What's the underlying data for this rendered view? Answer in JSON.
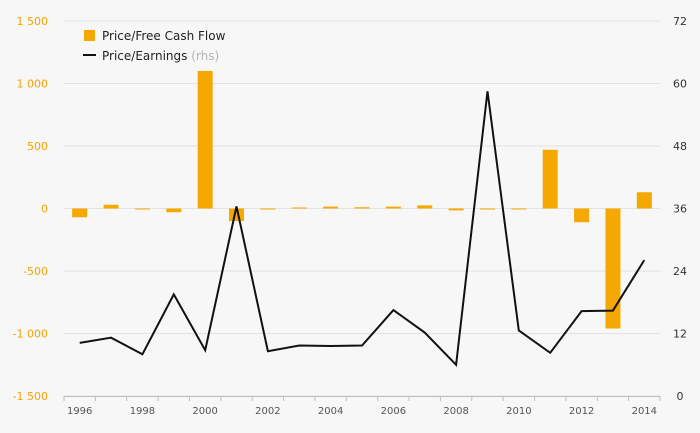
{
  "chart_data": {
    "type": "bar",
    "x": [
      1996,
      1997,
      1998,
      1999,
      2000,
      2001,
      2002,
      2003,
      2004,
      2005,
      2006,
      2007,
      2008,
      2009,
      2010,
      2011,
      2012,
      2013,
      2014
    ],
    "x_tick_labels": [
      "1996",
      "1998",
      "2000",
      "2002",
      "2004",
      "2006",
      "2008",
      "2010",
      "2012",
      "2014"
    ],
    "series": [
      {
        "name": "Price/Free Cash Flow",
        "type": "bar",
        "axis": "left",
        "color": "#f5a800",
        "values": [
          -70,
          30,
          -5,
          -30,
          1100,
          -100,
          -5,
          8,
          15,
          10,
          15,
          25,
          -15,
          -5,
          -5,
          470,
          -110,
          -960,
          130
        ]
      },
      {
        "name": "Price/Earnings",
        "name_suffix": "(rhs)",
        "type": "line",
        "axis": "right",
        "color": "#111111",
        "values": [
          10.2,
          11.2,
          8.0,
          19.5,
          8.8,
          36.4,
          8.6,
          9.7,
          9.6,
          9.7,
          16.5,
          12.2,
          6.0,
          58.5,
          12.6,
          8.3,
          16.3,
          16.4,
          26.1
        ]
      }
    ],
    "y_left": {
      "min": -1500,
      "max": 1500,
      "ticks": [
        -1500,
        -1000,
        -500,
        0,
        500,
        1000,
        1500
      ],
      "tick_labels": [
        "-1 500",
        "-1 000",
        "-500",
        "0",
        "500",
        "1 000",
        "1 500"
      ],
      "color": "#f5a300"
    },
    "y_right": {
      "min": 0,
      "max": 72,
      "ticks": [
        0,
        12,
        24,
        36,
        48,
        60,
        72
      ],
      "tick_labels": [
        "0",
        "12",
        "24",
        "36",
        "48",
        "60",
        "72"
      ]
    },
    "grid": "horizontal",
    "legend_position": "top-left"
  }
}
